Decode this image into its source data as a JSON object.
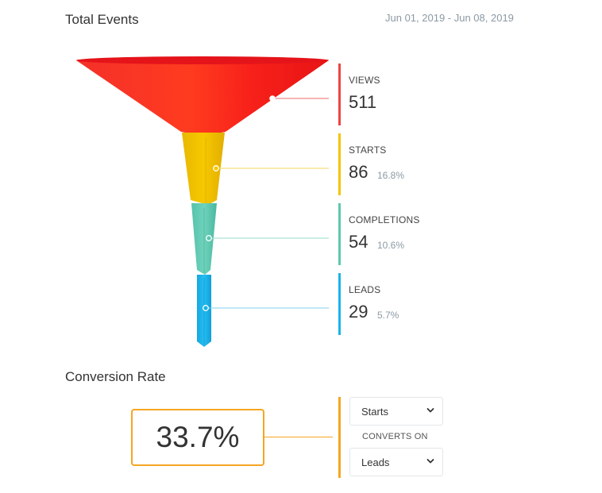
{
  "header": {
    "title": "Total Events",
    "date_range": "Jun 01, 2019 - Jun 08, 2019"
  },
  "colors": {
    "views": "#ee4444",
    "starts": "#f2c500",
    "completions": "#5cc8b0",
    "leads": "#19b3ea",
    "accent": "#f5a623"
  },
  "stages": [
    {
      "label": "VIEWS",
      "count": "511",
      "percent": ""
    },
    {
      "label": "STARTS",
      "count": "86",
      "percent": "16.8%"
    },
    {
      "label": "COMPLETIONS",
      "count": "54",
      "percent": "10.6%"
    },
    {
      "label": "LEADS",
      "count": "29",
      "percent": "5.7%"
    }
  ],
  "conversion": {
    "title": "Conversion Rate",
    "rate": "33.7%",
    "from_select": {
      "value": "Starts",
      "icon": "chevron-down-icon"
    },
    "converts_on_label": "CONVERTS ON",
    "to_select": {
      "value": "Leads",
      "icon": "chevron-down-icon"
    }
  }
}
